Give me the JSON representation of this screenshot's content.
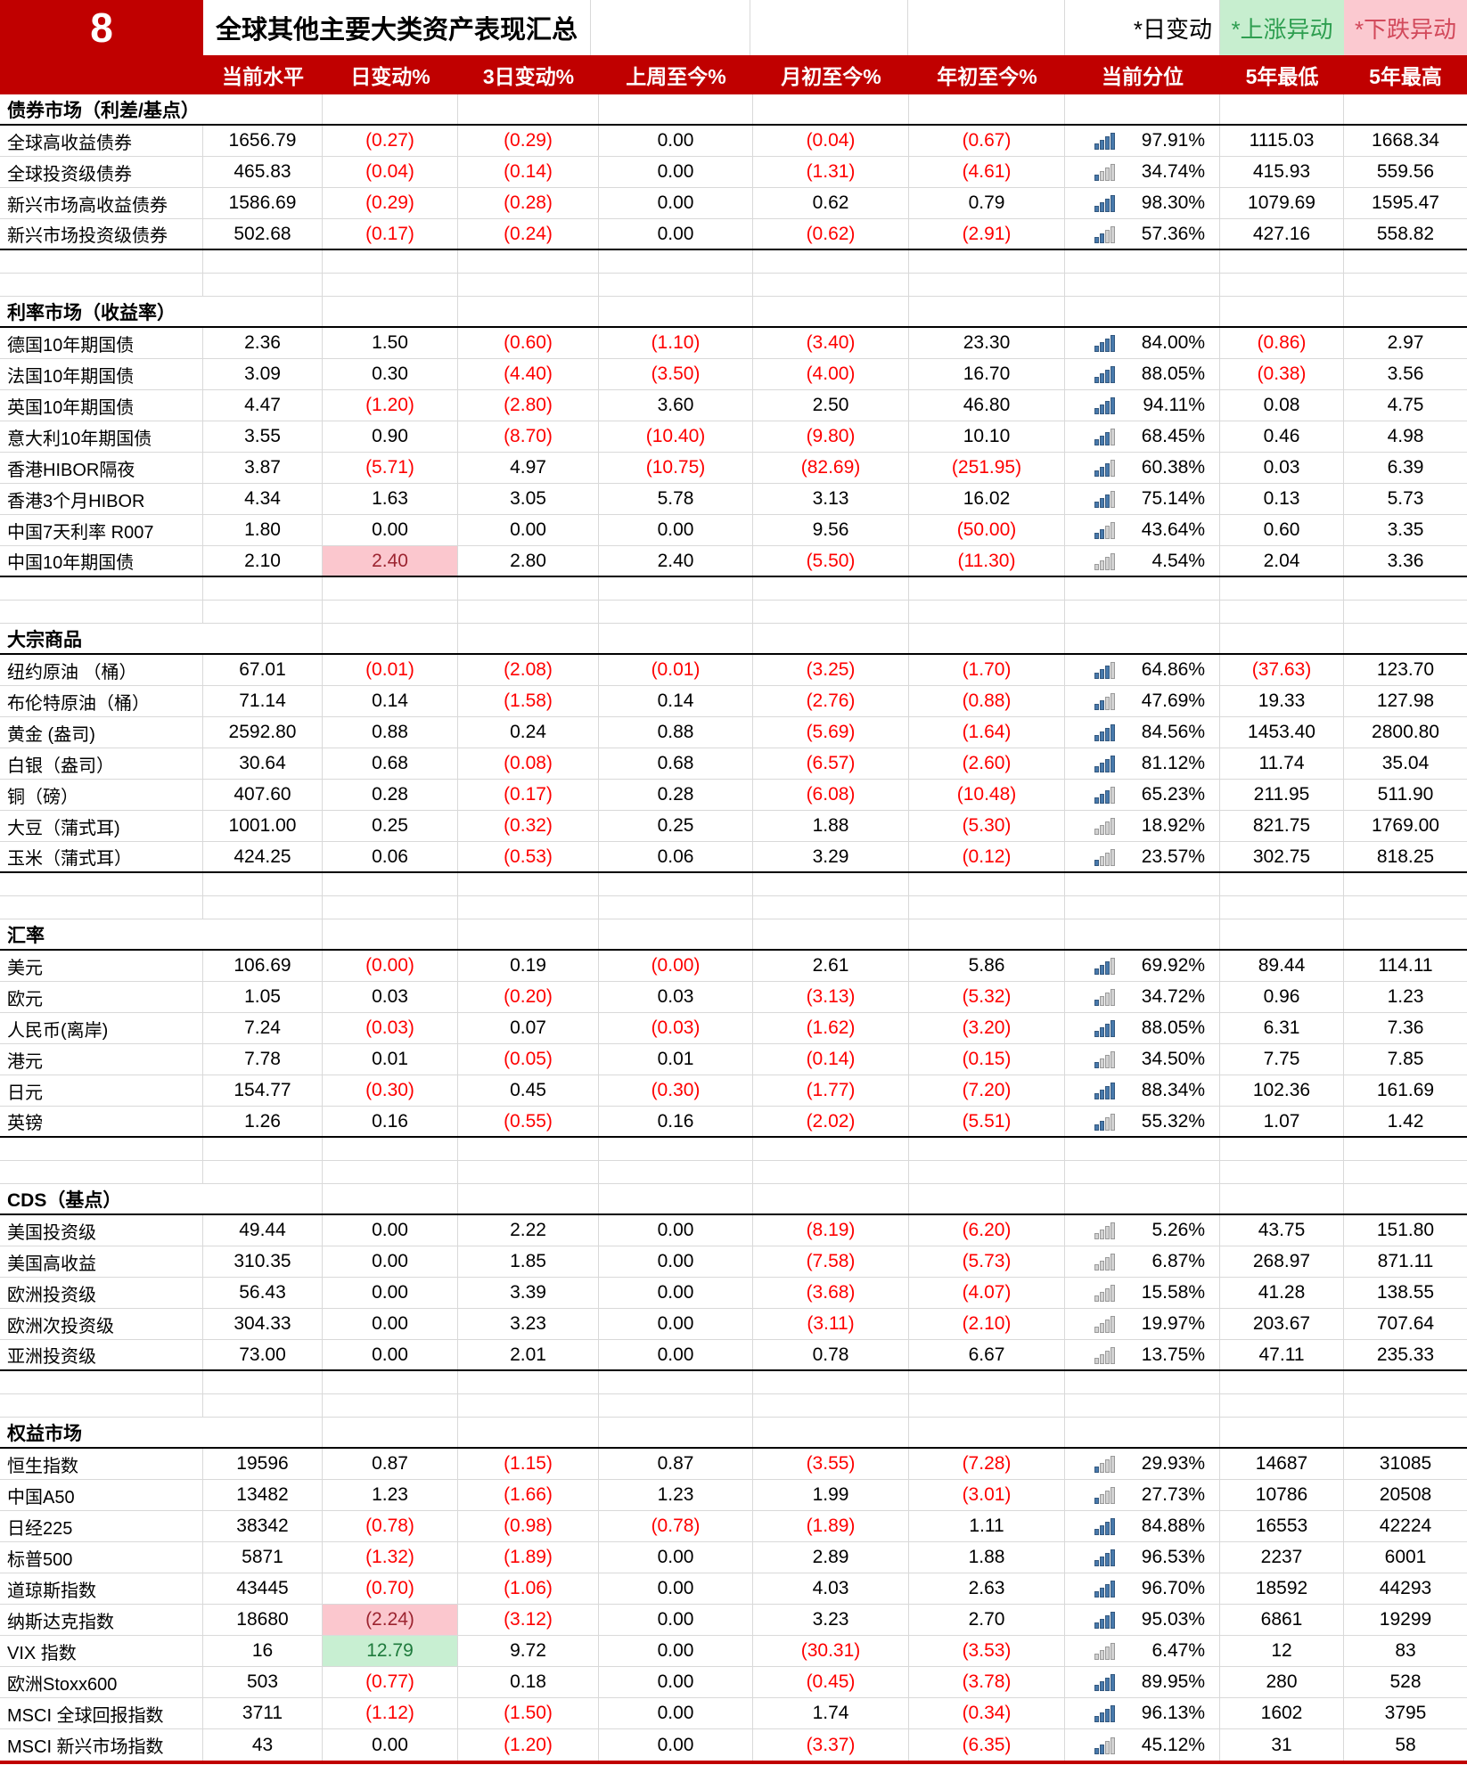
{
  "header": {
    "index": "8",
    "title": "全球其他主要大类资产表现汇总",
    "legend": {
      "daily": "*日变动",
      "up": "*上涨异动",
      "down": "*下跌异动"
    },
    "columns": [
      "当前水平",
      "日变动%",
      "3日变动%",
      "上周至今%",
      "月初至今%",
      "年初至今%",
      "当前分位",
      "5年最低",
      "5年最高"
    ]
  },
  "colors": {
    "accent_red": "#C00000",
    "negative_text": "#FE0000",
    "up_highlight_bg": "#C8EFD2",
    "up_highlight_text": "#1E7A3C",
    "down_highlight_bg": "#FBC7CE",
    "down_highlight_text": "#9C2430",
    "bar_filled": "#4779AC",
    "bar_empty": "#D2D2D2",
    "gridline": "#D9D9D9"
  },
  "sections": [
    {
      "name": "债券市场（利差/基点）",
      "rows": [
        {
          "label": "全球高收益债券",
          "values": [
            "1656.79",
            "(0.27)",
            "(0.29)",
            "0.00",
            "(0.04)",
            "(0.67)",
            "97.91%",
            "1115.03",
            "1668.34"
          ]
        },
        {
          "label": "全球投资级债券",
          "values": [
            "465.83",
            "(0.04)",
            "(0.14)",
            "0.00",
            "(1.31)",
            "(4.61)",
            "34.74%",
            "415.93",
            "559.56"
          ]
        },
        {
          "label": "新兴市场高收益债券",
          "values": [
            "1586.69",
            "(0.29)",
            "(0.28)",
            "0.00",
            "0.62",
            "0.79",
            "98.30%",
            "1079.69",
            "1595.47"
          ]
        },
        {
          "label": "新兴市场投资级债券",
          "values": [
            "502.68",
            "(0.17)",
            "(0.24)",
            "0.00",
            "(0.62)",
            "(2.91)",
            "57.36%",
            "427.16",
            "558.82"
          ]
        }
      ]
    },
    {
      "name": "利率市场（收益率）",
      "rows": [
        {
          "label": "德国10年期国债",
          "values": [
            "2.36",
            "1.50",
            "(0.60)",
            "(1.10)",
            "(3.40)",
            "23.30",
            "84.00%",
            "(0.86)",
            "2.97"
          ]
        },
        {
          "label": "法国10年期国债",
          "values": [
            "3.09",
            "0.30",
            "(4.40)",
            "(3.50)",
            "(4.00)",
            "16.70",
            "88.05%",
            "(0.38)",
            "3.56"
          ]
        },
        {
          "label": "英国10年期国债",
          "values": [
            "4.47",
            "(1.20)",
            "(2.80)",
            "3.60",
            "2.50",
            "46.80",
            "94.11%",
            "0.08",
            "4.75"
          ]
        },
        {
          "label": "意大利10年期国债",
          "values": [
            "3.55",
            "0.90",
            "(8.70)",
            "(10.40)",
            "(9.80)",
            "10.10",
            "68.45%",
            "0.46",
            "4.98"
          ]
        },
        {
          "label": "香港HIBOR隔夜",
          "values": [
            "3.87",
            "(5.71)",
            "4.97",
            "(10.75)",
            "(82.69)",
            "(251.95)",
            "60.38%",
            "0.03",
            "6.39"
          ]
        },
        {
          "label": "香港3个月HIBOR",
          "values": [
            "4.34",
            "1.63",
            "3.05",
            "5.78",
            "3.13",
            "16.02",
            "75.14%",
            "0.13",
            "5.73"
          ]
        },
        {
          "label": "中国7天利率 R007",
          "values": [
            "1.80",
            "0.00",
            "0.00",
            "0.00",
            "9.56",
            "(50.00)",
            "43.64%",
            "0.60",
            "3.35"
          ]
        },
        {
          "label": "中国10年期国债",
          "values": [
            "2.10",
            "2.40",
            "2.80",
            "2.40",
            "(5.50)",
            "(11.30)",
            "4.54%",
            "2.04",
            "3.36"
          ],
          "hl": {
            "col": 1,
            "kind": "down"
          }
        }
      ]
    },
    {
      "name": "大宗商品",
      "rows": [
        {
          "label": "纽约原油 （桶）",
          "values": [
            "67.01",
            "(0.01)",
            "(2.08)",
            "(0.01)",
            "(3.25)",
            "(1.70)",
            "64.86%",
            "(37.63)",
            "123.70"
          ]
        },
        {
          "label": "布伦特原油（桶）",
          "values": [
            "71.14",
            "0.14",
            "(1.58)",
            "0.14",
            "(2.76)",
            "(0.88)",
            "47.69%",
            "19.33",
            "127.98"
          ]
        },
        {
          "label": "黄金 (盎司)",
          "values": [
            "2592.80",
            "0.88",
            "0.24",
            "0.88",
            "(5.69)",
            "(1.64)",
            "84.56%",
            "1453.40",
            "2800.80"
          ]
        },
        {
          "label": "白银（盎司）",
          "values": [
            "30.64",
            "0.68",
            "(0.08)",
            "0.68",
            "(6.57)",
            "(2.60)",
            "81.12%",
            "11.74",
            "35.04"
          ]
        },
        {
          "label": "铜（磅）",
          "values": [
            "407.60",
            "0.28",
            "(0.17)",
            "0.28",
            "(6.08)",
            "(10.48)",
            "65.23%",
            "211.95",
            "511.90"
          ]
        },
        {
          "label": "大豆（蒲式耳)",
          "values": [
            "1001.00",
            "0.25",
            "(0.32)",
            "0.25",
            "1.88",
            "(5.30)",
            "18.92%",
            "821.75",
            "1769.00"
          ]
        },
        {
          "label": "玉米（蒲式耳）",
          "values": [
            "424.25",
            "0.06",
            "(0.53)",
            "0.06",
            "3.29",
            "(0.12)",
            "23.57%",
            "302.75",
            "818.25"
          ]
        }
      ]
    },
    {
      "name": "汇率",
      "rows": [
        {
          "label": "美元",
          "values": [
            "106.69",
            "(0.00)",
            "0.19",
            "(0.00)",
            "2.61",
            "5.86",
            "69.92%",
            "89.44",
            "114.11"
          ]
        },
        {
          "label": "欧元",
          "values": [
            "1.05",
            "0.03",
            "(0.20)",
            "0.03",
            "(3.13)",
            "(5.32)",
            "34.72%",
            "0.96",
            "1.23"
          ]
        },
        {
          "label": "人民币(离岸)",
          "values": [
            "7.24",
            "(0.03)",
            "0.07",
            "(0.03)",
            "(1.62)",
            "(3.20)",
            "88.05%",
            "6.31",
            "7.36"
          ]
        },
        {
          "label": "港元",
          "values": [
            "7.78",
            "0.01",
            "(0.05)",
            "0.01",
            "(0.14)",
            "(0.15)",
            "34.50%",
            "7.75",
            "7.85"
          ]
        },
        {
          "label": "日元",
          "values": [
            "154.77",
            "(0.30)",
            "0.45",
            "(0.30)",
            "(1.77)",
            "(7.20)",
            "88.34%",
            "102.36",
            "161.69"
          ]
        },
        {
          "label": "英镑",
          "values": [
            "1.26",
            "0.16",
            "(0.55)",
            "0.16",
            "(2.02)",
            "(5.51)",
            "55.32%",
            "1.07",
            "1.42"
          ]
        }
      ]
    },
    {
      "name": "CDS（基点）",
      "rows": [
        {
          "label": "美国投资级",
          "values": [
            "49.44",
            "0.00",
            "2.22",
            "0.00",
            "(8.19)",
            "(6.20)",
            "5.26%",
            "43.75",
            "151.80"
          ]
        },
        {
          "label": "美国高收益",
          "values": [
            "310.35",
            "0.00",
            "1.85",
            "0.00",
            "(7.58)",
            "(5.73)",
            "6.87%",
            "268.97",
            "871.11"
          ]
        },
        {
          "label": "欧洲投资级",
          "values": [
            "56.43",
            "0.00",
            "3.39",
            "0.00",
            "(3.68)",
            "(4.07)",
            "15.58%",
            "41.28",
            "138.55"
          ]
        },
        {
          "label": "欧洲次投资级",
          "values": [
            "304.33",
            "0.00",
            "3.23",
            "0.00",
            "(3.11)",
            "(2.10)",
            "19.97%",
            "203.67",
            "707.64"
          ]
        },
        {
          "label": "亚洲投资级",
          "values": [
            "73.00",
            "0.00",
            "2.01",
            "0.00",
            "0.78",
            "6.67",
            "13.75%",
            "47.11",
            "235.33"
          ]
        }
      ]
    },
    {
      "name": "权益市场",
      "rows": [
        {
          "label": "恒生指数",
          "values": [
            "19596",
            "0.87",
            "(1.15)",
            "0.87",
            "(3.55)",
            "(7.28)",
            "29.93%",
            "14687",
            "31085"
          ]
        },
        {
          "label": "中国A50",
          "values": [
            "13482",
            "1.23",
            "(1.66)",
            "1.23",
            "1.99",
            "(3.01)",
            "27.73%",
            "10786",
            "20508"
          ]
        },
        {
          "label": "日经225",
          "values": [
            "38342",
            "(0.78)",
            "(0.98)",
            "(0.78)",
            "(1.89)",
            "1.11",
            "84.88%",
            "16553",
            "42224"
          ]
        },
        {
          "label": "标普500",
          "values": [
            "5871",
            "(1.32)",
            "(1.89)",
            "0.00",
            "2.89",
            "1.88",
            "96.53%",
            "2237",
            "6001"
          ]
        },
        {
          "label": "道琼斯指数",
          "values": [
            "43445",
            "(0.70)",
            "(1.06)",
            "0.00",
            "4.03",
            "2.63",
            "96.70%",
            "18592",
            "44293"
          ]
        },
        {
          "label": "纳斯达克指数",
          "values": [
            "18680",
            "(2.24)",
            "(3.12)",
            "0.00",
            "3.23",
            "2.70",
            "95.03%",
            "6861",
            "19299"
          ],
          "hl": {
            "col": 1,
            "kind": "down"
          }
        },
        {
          "label": "VIX 指数",
          "values": [
            "16",
            "12.79",
            "9.72",
            "0.00",
            "(30.31)",
            "(3.53)",
            "6.47%",
            "12",
            "83"
          ],
          "hl": {
            "col": 1,
            "kind": "up"
          }
        },
        {
          "label": "欧洲Stoxx600",
          "values": [
            "503",
            "(0.77)",
            "0.18",
            "0.00",
            "(0.45)",
            "(3.78)",
            "89.95%",
            "280",
            "528"
          ]
        },
        {
          "label": "MSCI 全球回报指数",
          "values": [
            "3711",
            "(1.12)",
            "(1.50)",
            "0.00",
            "1.74",
            "(0.34)",
            "96.13%",
            "1602",
            "3795"
          ]
        },
        {
          "label": "MSCI 新兴市场指数",
          "values": [
            "43",
            "0.00",
            "(1.20)",
            "0.00",
            "(3.37)",
            "(6.35)",
            "45.12%",
            "31",
            "58"
          ]
        }
      ]
    }
  ]
}
